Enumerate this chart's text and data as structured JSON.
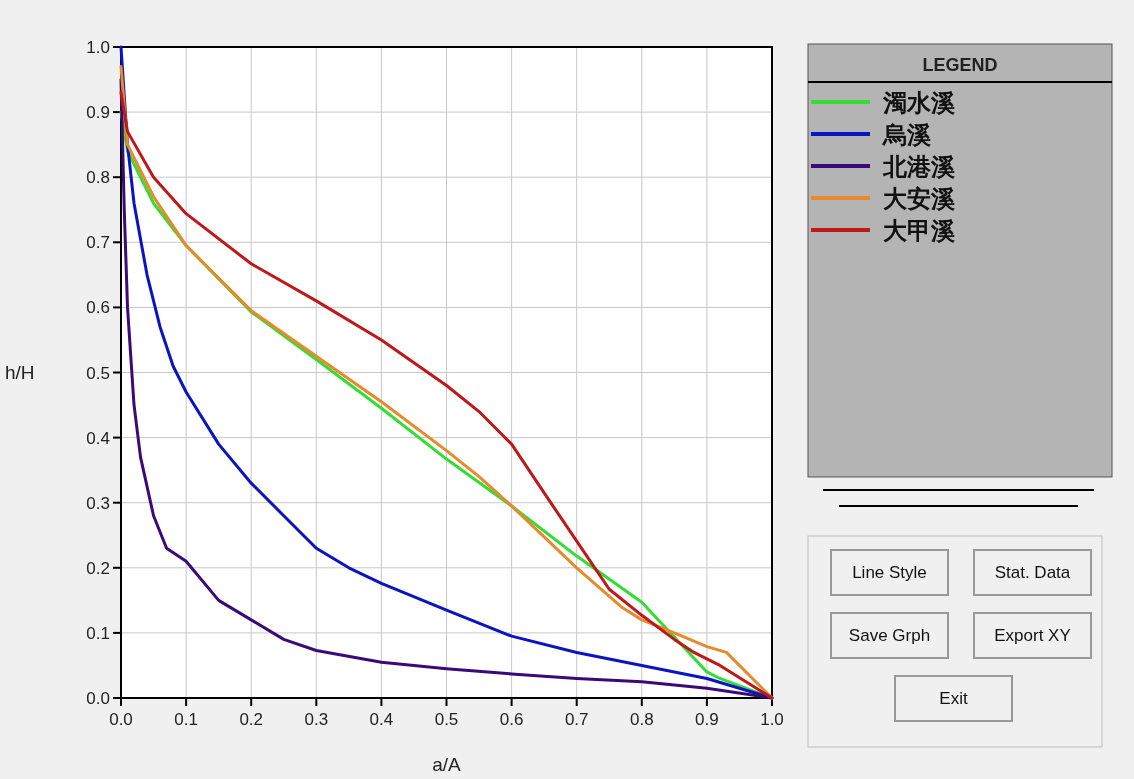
{
  "chart_data": {
    "type": "line",
    "xlabel": "a/A",
    "ylabel": "h/H",
    "legend_title": "LEGEND",
    "legend": "right",
    "grid": true,
    "line_style": "solid",
    "marker": "none",
    "xlim": [
      0,
      1
    ],
    "ylim": [
      0,
      1
    ],
    "xticks": [
      {
        "value": 0,
        "label": "0.0"
      },
      0.1,
      0.2,
      0.3,
      0.4,
      0.5,
      0.6,
      0.7,
      0.8,
      0.9,
      {
        "value": 1,
        "label": "1.0"
      }
    ],
    "yticks": [
      {
        "value": 0,
        "label": "0.0"
      },
      0.1,
      0.2,
      0.3,
      0.4,
      0.5,
      0.6,
      0.7,
      0.8,
      0.9,
      {
        "value": 1,
        "label": "1.0"
      }
    ],
    "series": [
      {
        "name": "濁水溪",
        "color": "#33dd33",
        "x": [
          0,
          0.01,
          0.05,
          0.1,
          0.2,
          0.3,
          0.4,
          0.5,
          0.6,
          0.7,
          0.8,
          0.9,
          0.92,
          1
        ],
        "values": [
          0.9,
          0.84,
          0.76,
          0.695,
          0.593,
          0.52,
          0.445,
          0.367,
          0.295,
          0.218,
          0.147,
          0.04,
          0.03,
          0
        ]
      },
      {
        "name": "烏溪",
        "color": "#0a14c0",
        "x": [
          0,
          0.01,
          0.02,
          0.04,
          0.06,
          0.08,
          0.1,
          0.15,
          0.2,
          0.25,
          0.3,
          0.35,
          0.4,
          0.5,
          0.6,
          0.7,
          0.8,
          0.9,
          1
        ],
        "values": [
          1.0,
          0.85,
          0.76,
          0.65,
          0.57,
          0.51,
          0.47,
          0.39,
          0.33,
          0.28,
          0.23,
          0.2,
          0.176,
          0.135,
          0.095,
          0.07,
          0.05,
          0.03,
          0
        ]
      },
      {
        "name": "北港溪",
        "color": "#3a0a78",
        "x": [
          0,
          0.005,
          0.01,
          0.02,
          0.03,
          0.05,
          0.07,
          0.1,
          0.15,
          0.2,
          0.25,
          0.3,
          0.4,
          0.5,
          0.6,
          0.7,
          0.8,
          0.9,
          1
        ],
        "values": [
          0.95,
          0.75,
          0.6,
          0.45,
          0.37,
          0.28,
          0.23,
          0.21,
          0.15,
          0.12,
          0.09,
          0.073,
          0.055,
          0.045,
          0.037,
          0.03,
          0.025,
          0.015,
          0
        ]
      },
      {
        "name": "大安溪",
        "color": "#e8892c",
        "x": [
          0,
          0.01,
          0.05,
          0.1,
          0.2,
          0.3,
          0.4,
          0.5,
          0.55,
          0.6,
          0.7,
          0.77,
          0.8,
          0.85,
          0.9,
          0.93,
          1
        ],
        "values": [
          0.97,
          0.85,
          0.77,
          0.695,
          0.595,
          0.525,
          0.455,
          0.38,
          0.34,
          0.295,
          0.2,
          0.139,
          0.12,
          0.1,
          0.079,
          0.07,
          0
        ]
      },
      {
        "name": "大甲溪",
        "color": "#c01818",
        "x": [
          0,
          0.01,
          0.05,
          0.1,
          0.2,
          0.3,
          0.4,
          0.5,
          0.55,
          0.6,
          0.65,
          0.7,
          0.75,
          0.8,
          0.85,
          0.88,
          0.92,
          1
        ],
        "values": [
          0.93,
          0.87,
          0.8,
          0.744,
          0.667,
          0.61,
          0.55,
          0.48,
          0.44,
          0.39,
          0.315,
          0.241,
          0.167,
          0.127,
          0.09,
          0.07,
          0.05,
          0
        ]
      }
    ],
    "annotations": [
      "Line Style",
      "Stat. Data",
      "Save Grph",
      "Export XY",
      "Exit"
    ]
  }
}
